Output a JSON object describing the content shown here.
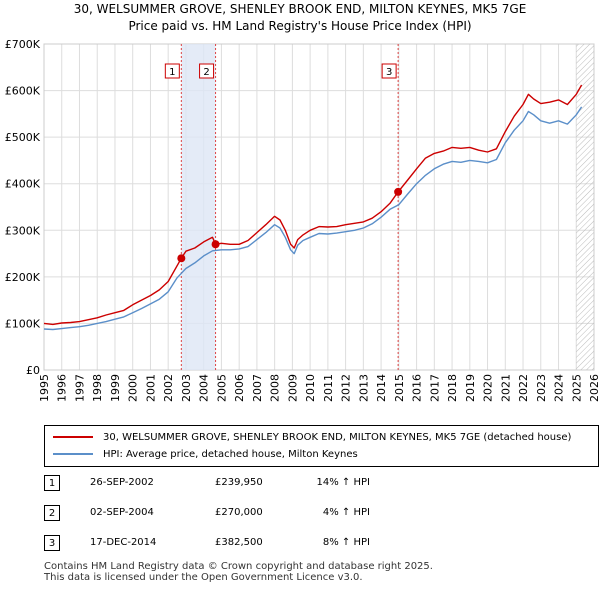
{
  "title_line1": "30, WELSUMMER GROVE, SHENLEY BROOK END, MILTON KEYNES, MK5 7GE",
  "title_line2": "Price paid vs. HM Land Registry's House Price Index (HPI)",
  "chart_data": {
    "type": "line",
    "title": "Price paid vs. HM Land Registry's House Price Index (HPI)",
    "xlabel": "",
    "ylabel": "",
    "xlim": [
      1995.0,
      2026.0
    ],
    "ylim": [
      0,
      700000
    ],
    "y_ticks": [
      0,
      100000,
      200000,
      300000,
      400000,
      500000,
      600000,
      700000
    ],
    "y_tick_labels": [
      "£0",
      "£100K",
      "£200K",
      "£300K",
      "£400K",
      "£500K",
      "£600K",
      "£700K"
    ],
    "x_ticks": [
      1995,
      1996,
      1997,
      1998,
      1999,
      2000,
      2001,
      2002,
      2003,
      2004,
      2005,
      2006,
      2007,
      2008,
      2009,
      2010,
      2011,
      2012,
      2013,
      2014,
      2015,
      2016,
      2017,
      2018,
      2019,
      2020,
      2021,
      2022,
      2023,
      2024,
      2025,
      2026
    ],
    "grid": true,
    "series": [
      {
        "name": "30, WELSUMMER GROVE, SHENLEY BROOK END, MILTON KEYNES, MK5 7GE (detached house)",
        "color": "#cc0000",
        "x": [
          1995.0,
          1995.5,
          1996.0,
          1996.5,
          1997.0,
          1997.5,
          1998.0,
          1998.5,
          1999.0,
          1999.5,
          2000.0,
          2000.5,
          2001.0,
          2001.5,
          2002.0,
          2002.74,
          2003.0,
          2003.5,
          2004.0,
          2004.5,
          2004.67,
          2005.0,
          2005.5,
          2006.0,
          2006.5,
          2007.0,
          2007.5,
          2008.0,
          2008.3,
          2008.6,
          2008.9,
          2009.1,
          2009.3,
          2009.6,
          2010.0,
          2010.5,
          2011.0,
          2011.5,
          2012.0,
          2012.5,
          2013.0,
          2013.5,
          2014.0,
          2014.5,
          2014.96,
          2015.5,
          2016.0,
          2016.5,
          2017.0,
          2017.5,
          2018.0,
          2018.5,
          2019.0,
          2019.5,
          2020.0,
          2020.5,
          2021.0,
          2021.5,
          2022.0,
          2022.3,
          2022.6,
          2023.0,
          2023.5,
          2024.0,
          2024.5,
          2025.0,
          2025.3
        ],
        "values": [
          100000,
          98000,
          101000,
          102000,
          104000,
          108000,
          112000,
          118000,
          123000,
          128000,
          140000,
          150000,
          160000,
          172000,
          190000,
          239950,
          255000,
          262000,
          275000,
          285000,
          270000,
          272000,
          270000,
          270000,
          278000,
          295000,
          312000,
          330000,
          322000,
          300000,
          270000,
          262000,
          280000,
          290000,
          300000,
          308000,
          307000,
          308000,
          312000,
          315000,
          318000,
          326000,
          340000,
          358000,
          382500,
          408000,
          432000,
          455000,
          465000,
          470000,
          478000,
          476000,
          478000,
          472000,
          468000,
          475000,
          512000,
          545000,
          570000,
          592000,
          582000,
          572000,
          575000,
          580000,
          570000,
          592000,
          612000
        ]
      },
      {
        "name": "HPI: Average price, detached house, Milton Keynes",
        "color": "#5b8fc9",
        "x": [
          1995.0,
          1995.5,
          1996.0,
          1996.5,
          1997.0,
          1997.5,
          1998.0,
          1998.5,
          1999.0,
          1999.5,
          2000.0,
          2000.5,
          2001.0,
          2001.5,
          2002.0,
          2002.5,
          2003.0,
          2003.5,
          2004.0,
          2004.5,
          2005.0,
          2005.5,
          2006.0,
          2006.5,
          2007.0,
          2007.5,
          2008.0,
          2008.3,
          2008.6,
          2008.9,
          2009.1,
          2009.3,
          2009.6,
          2010.0,
          2010.5,
          2011.0,
          2011.5,
          2012.0,
          2012.5,
          2013.0,
          2013.5,
          2014.0,
          2014.5,
          2015.0,
          2015.5,
          2016.0,
          2016.5,
          2017.0,
          2017.5,
          2018.0,
          2018.5,
          2019.0,
          2019.5,
          2020.0,
          2020.5,
          2021.0,
          2021.5,
          2022.0,
          2022.3,
          2022.6,
          2023.0,
          2023.5,
          2024.0,
          2024.5,
          2025.0,
          2025.3
        ],
        "values": [
          88000,
          87000,
          89000,
          91000,
          93000,
          96000,
          100000,
          104000,
          109000,
          114000,
          123000,
          132000,
          142000,
          152000,
          168000,
          198000,
          218000,
          230000,
          245000,
          256000,
          258000,
          258000,
          260000,
          265000,
          280000,
          295000,
          312000,
          305000,
          285000,
          258000,
          250000,
          268000,
          278000,
          285000,
          293000,
          292000,
          294000,
          297000,
          300000,
          305000,
          314000,
          328000,
          345000,
          355000,
          378000,
          400000,
          418000,
          432000,
          442000,
          448000,
          446000,
          450000,
          448000,
          445000,
          452000,
          488000,
          515000,
          535000,
          555000,
          548000,
          535000,
          530000,
          535000,
          528000,
          548000,
          565000
        ]
      }
    ],
    "annotations": [
      {
        "label": "1",
        "x": 2002.74,
        "y": 239950
      },
      {
        "label": "2",
        "x": 2004.67,
        "y": 270000
      },
      {
        "label": "3",
        "x": 2014.96,
        "y": 382500
      }
    ],
    "shaded_range": [
      2002.74,
      2004.67
    ],
    "hatched_from": 2025.0
  },
  "legend": {
    "property_label": "30, WELSUMMER GROVE, SHENLEY BROOK END, MILTON KEYNES, MK5 7GE (detached house)",
    "hpi_label": "HPI: Average price, detached house, Milton Keynes",
    "property_color": "#cc0000",
    "hpi_color": "#5b8fc9"
  },
  "sales": [
    {
      "num": "1",
      "date": "26-SEP-2002",
      "price": "£239,950",
      "hpi": "14% ↑ HPI"
    },
    {
      "num": "2",
      "date": "02-SEP-2004",
      "price": "£270,000",
      "hpi": "4% ↑ HPI"
    },
    {
      "num": "3",
      "date": "17-DEC-2014",
      "price": "£382,500",
      "hpi": "8% ↑ HPI"
    }
  ],
  "footer_line1": "Contains HM Land Registry data © Crown copyright and database right 2025.",
  "footer_line2": "This data is licensed under the Open Government Licence v3.0."
}
